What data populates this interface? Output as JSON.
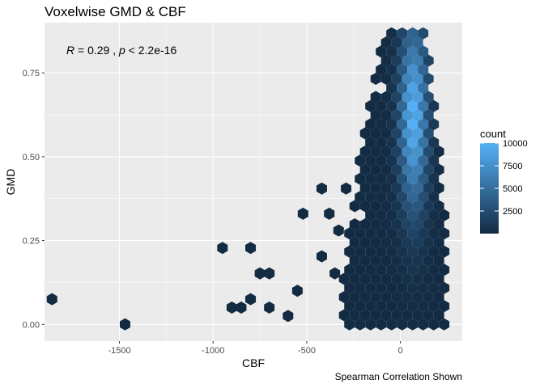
{
  "chart_data": {
    "type": "hexbin",
    "title": "Voxelwise GMD & CBF",
    "xlabel": "CBF",
    "ylabel": "GMD",
    "caption": "Spearman Correlation Shown",
    "annotation": {
      "r_label": "R",
      "r_value": " = 0.29 , ",
      "p_label": "p",
      "p_value": " < 2.2e-16"
    },
    "xlim": [
      -1900,
      330
    ],
    "ylim": [
      -0.05,
      0.9
    ],
    "x_ticks": [
      -1500,
      -1000,
      -500,
      0
    ],
    "x_tick_labels": [
      "-1500",
      "-1000",
      "-500",
      "0"
    ],
    "y_ticks": [
      0.0,
      0.25,
      0.5,
      0.75
    ],
    "y_tick_labels": [
      "0.00",
      "0.25",
      "0.50",
      "0.75"
    ],
    "grid": true,
    "legend": {
      "title": "count",
      "position": "right",
      "breaks": [
        2500,
        5000,
        7500,
        10000
      ],
      "break_labels": [
        "2500",
        "5000",
        "7500",
        "10000"
      ],
      "range": [
        1,
        10000
      ],
      "low_color": "#132B43",
      "high_color": "#56B1F7"
    },
    "outliers": [
      {
        "x": -1860,
        "y": 0.075,
        "count": 1
      },
      {
        "x": -1470,
        "y": 0.0,
        "count": 1
      },
      {
        "x": -950,
        "y": 0.228,
        "count": 1
      },
      {
        "x": -800,
        "y": 0.228,
        "count": 1
      },
      {
        "x": -750,
        "y": 0.152,
        "count": 1
      },
      {
        "x": -700,
        "y": 0.152,
        "count": 1
      },
      {
        "x": -900,
        "y": 0.05,
        "count": 1
      },
      {
        "x": -800,
        "y": 0.075,
        "count": 1
      },
      {
        "x": -850,
        "y": 0.05,
        "count": 1
      },
      {
        "x": -700,
        "y": 0.05,
        "count": 1
      },
      {
        "x": -600,
        "y": 0.025,
        "count": 1
      },
      {
        "x": -550,
        "y": 0.1,
        "count": 1
      },
      {
        "x": -520,
        "y": 0.33,
        "count": 1
      },
      {
        "x": -420,
        "y": 0.405,
        "count": 1
      },
      {
        "x": -420,
        "y": 0.203,
        "count": 1
      },
      {
        "x": -380,
        "y": 0.33,
        "count": 1
      },
      {
        "x": -350,
        "y": 0.152,
        "count": 1
      },
      {
        "x": -330,
        "y": 0.28,
        "count": 1
      },
      {
        "x": -290,
        "y": 0.405,
        "count": 1
      }
    ],
    "density_peak": {
      "x": 70,
      "y": 0.62
    }
  }
}
